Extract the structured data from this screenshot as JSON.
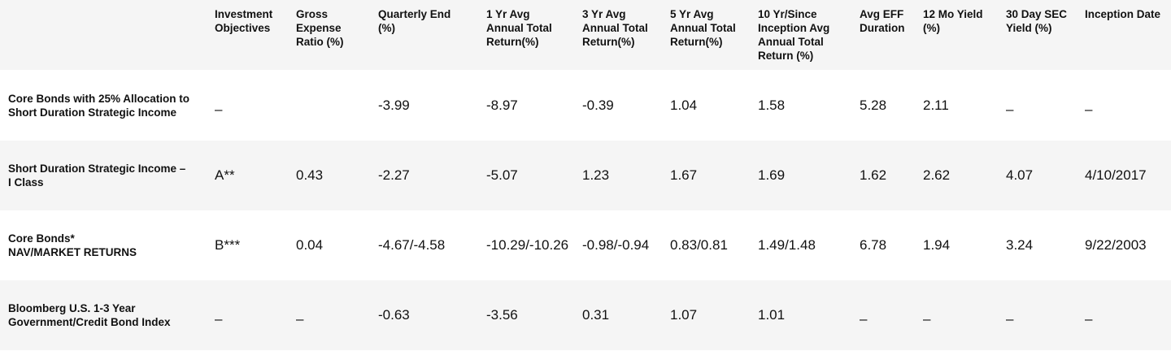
{
  "table": {
    "headers": [
      "",
      "Investment\nObjectives",
      "Gross\nExpense\nRatio (%)",
      "Quarterly End\n(%)",
      "1 Yr Avg\nAnnual Total\nReturn(%)",
      "3 Yr Avg\nAnnual Total\nReturn(%)",
      "5 Yr Avg\nAnnual Total\nReturn(%)",
      "10 Yr/Since\nInception Avg\nAnnual Total\nReturn (%)",
      "Avg EFF\nDuration",
      "12 Mo Yield\n(%)",
      "30 Day SEC\nYield (%)",
      "Inception Date"
    ],
    "rows": [
      {
        "name": "Core Bonds with 25% Allocation to\nShort Duration Strategic Income",
        "cells": [
          "–",
          "",
          "-3.99",
          "-8.97",
          "-0.39",
          "1.04",
          "1.58",
          "5.28",
          "2.11",
          "–",
          "–"
        ]
      },
      {
        "name": "Short Duration Strategic Income –\nI Class",
        "cells": [
          "A**",
          "0.43",
          "-2.27",
          "-5.07",
          "1.23",
          "1.67",
          "1.69",
          "1.62",
          "2.62",
          "4.07",
          "4/10/2017"
        ]
      },
      {
        "name": "Core Bonds*\nNAV/MARKET RETURNS",
        "cells": [
          "B***",
          "0.04",
          "-4.67/-4.58",
          "-10.29/-10.26",
          "-0.98/-0.94",
          "0.83/0.81",
          "1.49/1.48",
          "6.78",
          "1.94",
          "3.24",
          "9/22/2003"
        ]
      },
      {
        "name": "Bloomberg U.S. 1-3 Year\nGovernment/Credit Bond Index",
        "cells": [
          "–",
          "–",
          "-0.63",
          "-3.56",
          "0.31",
          "1.07",
          "1.01",
          "–",
          "–",
          "–",
          "–"
        ]
      }
    ]
  }
}
